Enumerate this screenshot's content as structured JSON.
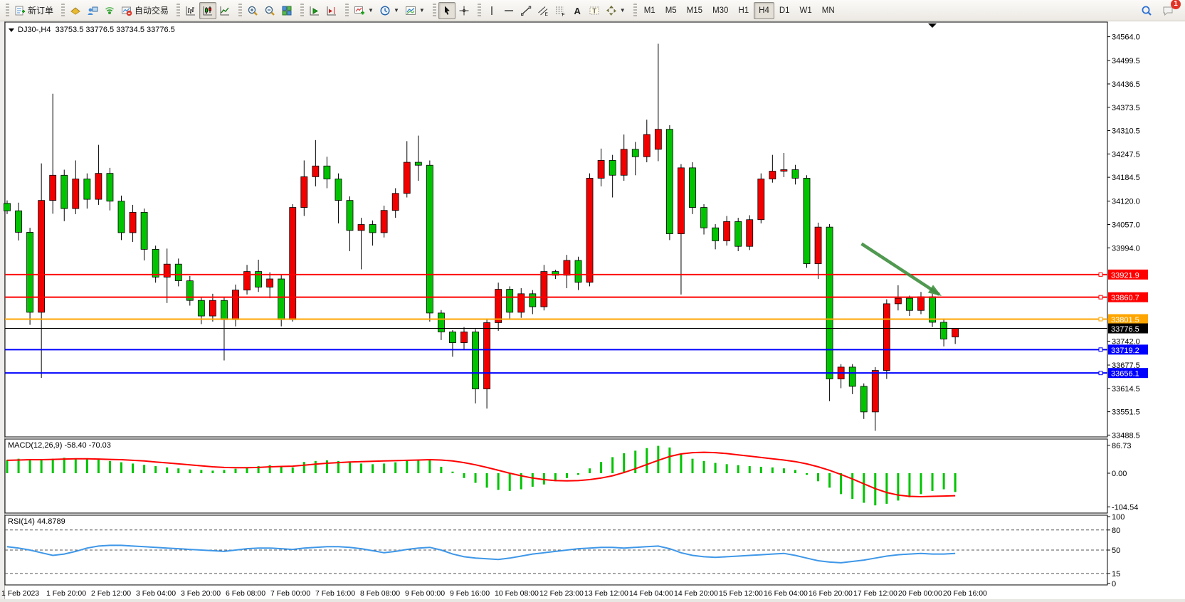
{
  "window": {
    "chat_badge": "1"
  },
  "toolbar": {
    "groups": [
      {
        "name": "order",
        "items": [
          {
            "name": "new-order-button",
            "icon": "new-order",
            "label": "新订单"
          }
        ]
      },
      {
        "name": "panels",
        "items": [
          {
            "name": "market-watch-button",
            "icon": "market-watch"
          },
          {
            "name": "data-window-button",
            "icon": "data-window"
          },
          {
            "name": "signals-button",
            "icon": "signals"
          },
          {
            "name": "autotrading-button",
            "icon": "autotrading",
            "label": "自动交易"
          }
        ]
      },
      {
        "name": "chart-type",
        "items": [
          {
            "name": "bar-chart-button",
            "icon": "bar-chart"
          },
          {
            "name": "candlestick-chart-button",
            "icon": "candlestick-chart",
            "pressed": true
          },
          {
            "name": "line-chart-button",
            "icon": "line-chart"
          }
        ]
      },
      {
        "name": "zoom",
        "items": [
          {
            "name": "zoom-in-button",
            "icon": "zoom-in"
          },
          {
            "name": "zoom-out-button",
            "icon": "zoom-out"
          },
          {
            "name": "tile-windows-button",
            "icon": "tile-windows"
          }
        ]
      },
      {
        "name": "scroll",
        "items": [
          {
            "name": "auto-scroll-button",
            "icon": "auto-scroll"
          },
          {
            "name": "chart-shift-button",
            "icon": "chart-shift"
          }
        ]
      },
      {
        "name": "insert",
        "items": [
          {
            "name": "indicators-button",
            "icon": "add-indicator",
            "caret": true
          },
          {
            "name": "periods-button",
            "icon": "periods",
            "caret": true
          },
          {
            "name": "templates-button",
            "icon": "templates",
            "caret": true
          }
        ]
      },
      {
        "name": "pointer",
        "items": [
          {
            "name": "cursor-button",
            "icon": "cursor",
            "pressed": true
          },
          {
            "name": "crosshair-button",
            "icon": "crosshair"
          }
        ]
      },
      {
        "name": "objects",
        "items": [
          {
            "name": "vertical-line-button",
            "icon": "vertical-line"
          },
          {
            "name": "horizontal-line-button",
            "icon": "horizontal-line"
          },
          {
            "name": "trend-line-button",
            "icon": "trend-line"
          },
          {
            "name": "equidistant-channel-button",
            "icon": "equidistant-channel"
          },
          {
            "name": "fibonacci-button",
            "icon": "fibonacci"
          },
          {
            "name": "text-button",
            "icon": "text"
          },
          {
            "name": "text-label-button",
            "icon": "text-label"
          },
          {
            "name": "arrows-button",
            "icon": "arrows",
            "caret": true
          }
        ]
      },
      {
        "name": "timeframes",
        "items": [
          {
            "name": "tf-m1-button",
            "label": "M1"
          },
          {
            "name": "tf-m5-button",
            "label": "M5"
          },
          {
            "name": "tf-m15-button",
            "label": "M15"
          },
          {
            "name": "tf-m30-button",
            "label": "M30"
          },
          {
            "name": "tf-h1-button",
            "label": "H1"
          },
          {
            "name": "tf-h4-button",
            "label": "H4",
            "pressed": true
          },
          {
            "name": "tf-d1-button",
            "label": "D1"
          },
          {
            "name": "tf-w1-button",
            "label": "W1"
          },
          {
            "name": "tf-mn-button",
            "label": "MN"
          }
        ]
      }
    ],
    "right_items": [
      {
        "name": "search-button",
        "icon": "search"
      },
      {
        "name": "chat-button",
        "icon": "chat",
        "badge": "1"
      }
    ]
  },
  "chart_data": [
    {
      "type": "candlestick",
      "symbol": "DJ30-",
      "timeframe": "H4",
      "title_line": "DJ30-,H4  33753.5 33776.5 33734.5 33776.5",
      "open": "33753.5",
      "high": "33776.5",
      "low": "33734.5",
      "close": "33776.5",
      "bull_color": "#f20000",
      "bear_color": "#00c400",
      "wick_color": "#000000",
      "y_axis_ticks": [
        "34564.0",
        "34499.5",
        "34436.5",
        "34373.5",
        "34310.5",
        "34247.5",
        "34184.5",
        "34120.0",
        "34057.0",
        "33994.0",
        "33742.0",
        "33677.5",
        "33614.5",
        "33551.5",
        "33488.5"
      ],
      "x_axis_labels": [
        "1 Feb 2023",
        "1 Feb 20:00",
        "2 Feb 12:00",
        "3 Feb 04:00",
        "3 Feb 20:00",
        "6 Feb 08:00",
        "7 Feb 00:00",
        "7 Feb 16:00",
        "8 Feb 08:00",
        "9 Feb 00:00",
        "9 Feb 16:00",
        "10 Feb 08:00",
        "12 Feb 23:00",
        "13 Feb 12:00",
        "14 Feb 04:00",
        "14 Feb 20:00",
        "15 Feb 12:00",
        "16 Feb 04:00",
        "16 Feb 20:00",
        "17 Feb 12:00",
        "20 Feb 00:00",
        "20 Feb 16:00"
      ],
      "candles": [
        [
          34114,
          34122,
          34085,
          34094
        ],
        [
          34094,
          34116,
          34014,
          34036
        ],
        [
          34036,
          34048,
          33786,
          33820
        ],
        [
          33820,
          34222,
          33643,
          34122
        ],
        [
          34122,
          34410,
          34086,
          34190
        ],
        [
          34190,
          34205,
          34066,
          34100
        ],
        [
          34100,
          34230,
          34085,
          34180
        ],
        [
          34180,
          34195,
          34100,
          34125
        ],
        [
          34125,
          34272,
          34110,
          34195
        ],
        [
          34195,
          34210,
          34095,
          34120
        ],
        [
          34120,
          34135,
          34015,
          34035
        ],
        [
          34035,
          34110,
          34010,
          34090
        ],
        [
          34090,
          34100,
          33960,
          33990
        ],
        [
          33990,
          34000,
          33900,
          33915
        ],
        [
          33915,
          33992,
          33845,
          33950
        ],
        [
          33950,
          33965,
          33890,
          33905
        ],
        [
          33905,
          33918,
          33838,
          33852
        ],
        [
          33852,
          33862,
          33788,
          33810
        ],
        [
          33810,
          33870,
          33795,
          33852
        ],
        [
          33852,
          33860,
          33690,
          33800
        ],
        [
          33800,
          33895,
          33782,
          33880
        ],
        [
          33880,
          33948,
          33868,
          33930
        ],
        [
          33930,
          33962,
          33875,
          33888
        ],
        [
          33888,
          33928,
          33858,
          33910
        ],
        [
          33910,
          33920,
          33782,
          33800
        ],
        [
          33800,
          34112,
          33795,
          34103
        ],
        [
          34103,
          34230,
          34080,
          34186
        ],
        [
          34186,
          34285,
          34160,
          34215
        ],
        [
          34215,
          34240,
          34155,
          34180
        ],
        [
          34180,
          34195,
          34060,
          34122
        ],
        [
          34122,
          34133,
          33985,
          34041
        ],
        [
          34041,
          34075,
          33936,
          34057
        ],
        [
          34057,
          34068,
          34000,
          34035
        ],
        [
          34035,
          34108,
          34022,
          34095
        ],
        [
          34095,
          34155,
          34075,
          34141
        ],
        [
          34141,
          34282,
          34130,
          34225
        ],
        [
          34225,
          34297,
          34175,
          34217
        ],
        [
          34217,
          34230,
          33795,
          33818
        ],
        [
          33818,
          33826,
          33745,
          33767
        ],
        [
          33767,
          33772,
          33700,
          33738
        ],
        [
          33738,
          33780,
          33718,
          33767
        ],
        [
          33767,
          33775,
          33574,
          33613
        ],
        [
          33613,
          33800,
          33560,
          33792
        ],
        [
          33792,
          33900,
          33770,
          33882
        ],
        [
          33882,
          33890,
          33800,
          33820
        ],
        [
          33820,
          33885,
          33805,
          33870
        ],
        [
          33870,
          33880,
          33815,
          33835
        ],
        [
          33835,
          33948,
          33825,
          33930
        ],
        [
          33930,
          33935,
          33910,
          33920
        ],
        [
          33920,
          33975,
          33885,
          33960
        ],
        [
          33960,
          33970,
          33880,
          33901
        ],
        [
          33901,
          34195,
          33890,
          34182
        ],
        [
          34182,
          34262,
          34160,
          34230
        ],
        [
          34230,
          34245,
          34130,
          34190
        ],
        [
          34190,
          34300,
          34175,
          34260
        ],
        [
          34260,
          34280,
          34190,
          34240
        ],
        [
          34240,
          34340,
          34225,
          34300
        ],
        [
          34260,
          34545,
          34228,
          34314
        ],
        [
          34314,
          34325,
          34015,
          34032
        ],
        [
          34032,
          34220,
          33868,
          34210
        ],
        [
          34210,
          34225,
          34085,
          34103
        ],
        [
          34103,
          34112,
          34030,
          34048
        ],
        [
          34048,
          34058,
          33990,
          34013
        ],
        [
          34013,
          34080,
          34000,
          34065
        ],
        [
          34065,
          34075,
          33985,
          33998
        ],
        [
          33998,
          34082,
          33988,
          34070
        ],
        [
          34070,
          34195,
          34060,
          34180
        ],
        [
          34180,
          34245,
          34170,
          34201
        ],
        [
          34201,
          34250,
          34185,
          34205
        ],
        [
          34205,
          34218,
          34165,
          34182
        ],
        [
          34182,
          34190,
          33940,
          33951
        ],
        [
          33951,
          34062,
          33910,
          34050
        ],
        [
          34050,
          34058,
          33580,
          33640
        ],
        [
          33640,
          33680,
          33615,
          33672
        ],
        [
          33672,
          33680,
          33599,
          33620
        ],
        [
          33620,
          33628,
          33532,
          33551
        ],
        [
          33551,
          33672,
          33500,
          33663
        ],
        [
          33663,
          33855,
          33640,
          33843
        ],
        [
          33843,
          33893,
          33825,
          33858
        ],
        [
          33858,
          33865,
          33810,
          33825
        ],
        [
          33825,
          33875,
          33815,
          33862
        ],
        [
          33862,
          33870,
          33780,
          33793
        ],
        [
          33793,
          33800,
          33728,
          33748
        ],
        [
          33753.5,
          33776.5,
          33734.5,
          33776.5
        ]
      ],
      "hlines": [
        {
          "price": 33921.9,
          "label": "33921.9",
          "color": "#ff0000"
        },
        {
          "price": 33860.7,
          "label": "33860.7",
          "color": "#ff0000"
        },
        {
          "price": 33801.5,
          "label": "33801.5",
          "color": "#ffa500"
        },
        {
          "price": 33776.5,
          "label": "33776.5",
          "color": "#000000",
          "is_price_marker": true
        },
        {
          "price": 33719.2,
          "label": "33719.2",
          "color": "#0000ff"
        },
        {
          "price": 33656.1,
          "label": "33656.1",
          "color": "#0000ff"
        }
      ],
      "annotation_arrow": {
        "x1_candle": 74.8,
        "y1_price": 34005,
        "x2_candle": 81.6,
        "y2_price": 33868,
        "color": "#3f8f3f"
      }
    },
    {
      "type": "macd",
      "label": "MACD(12,26,9) -58.40 -70.03",
      "params": "12,26,9",
      "value": "-58.40",
      "signal_value": "-70.03",
      "axis_labels": [
        "86.73",
        "0.00",
        "-104.54"
      ],
      "hist_color": "#00c400",
      "signal_color": "#ff0000",
      "histogram": [
        42,
        45,
        43,
        40,
        45,
        48,
        46,
        44,
        42,
        38,
        34,
        30,
        26,
        22,
        18,
        15,
        12,
        10,
        8,
        10,
        14,
        18,
        22,
        25,
        22,
        18,
        35,
        38,
        40,
        38,
        33,
        30,
        28,
        30,
        34,
        38,
        42,
        40,
        20,
        5,
        -15,
        -30,
        -45,
        -52,
        -55,
        -50,
        -42,
        -35,
        -25,
        -15,
        -5,
        15,
        35,
        50,
        62,
        70,
        78,
        85,
        80,
        60,
        45,
        38,
        32,
        28,
        25,
        22,
        20,
        18,
        15,
        10,
        -5,
        -25,
        -45,
        -65,
        -80,
        -92,
        -100,
        -95,
        -85,
        -75,
        -65,
        -55,
        -50,
        -58.4
      ],
      "signal": [
        40,
        41,
        42,
        42,
        43,
        44,
        45,
        45,
        44,
        43,
        42,
        40,
        38,
        35,
        32,
        29,
        26,
        23,
        20,
        18,
        17,
        17,
        18,
        20,
        21,
        22,
        25,
        28,
        31,
        33,
        35,
        36,
        37,
        38,
        39,
        40,
        41,
        42,
        41,
        38,
        33,
        26,
        18,
        9,
        0,
        -8,
        -15,
        -20,
        -23,
        -24,
        -23,
        -20,
        -15,
        -8,
        2,
        14,
        27,
        40,
        52,
        60,
        64,
        65,
        64,
        61,
        57,
        53,
        49,
        45,
        41,
        36,
        29,
        20,
        9,
        -4,
        -18,
        -33,
        -48,
        -60,
        -68,
        -72,
        -73,
        -72,
        -71,
        -70
      ]
    },
    {
      "type": "rsi",
      "label": "RSI(14) 44.8789",
      "value": "44.8789",
      "axis_labels": [
        "100",
        "80",
        "50",
        "15",
        "0"
      ],
      "dashed_levels": [
        80,
        50,
        15
      ],
      "line_color": "#3e97e8",
      "values": [
        55,
        53,
        50,
        46,
        42,
        44,
        48,
        53,
        56,
        57,
        57,
        56,
        55,
        54,
        53,
        52,
        51,
        50,
        49,
        48,
        50,
        52,
        53,
        53,
        52,
        51,
        53,
        54,
        55,
        55,
        54,
        52,
        49,
        46,
        48,
        51,
        53,
        54,
        50,
        44,
        40,
        38,
        37,
        36,
        38,
        41,
        44,
        46,
        48,
        50,
        52,
        53,
        54,
        54,
        53,
        54,
        55,
        56,
        52,
        46,
        42,
        40,
        39,
        40,
        41,
        42,
        43,
        44,
        45,
        42,
        38,
        34,
        32,
        31,
        33,
        35,
        38,
        41,
        43,
        44,
        45,
        44,
        44,
        44.88
      ]
    }
  ]
}
